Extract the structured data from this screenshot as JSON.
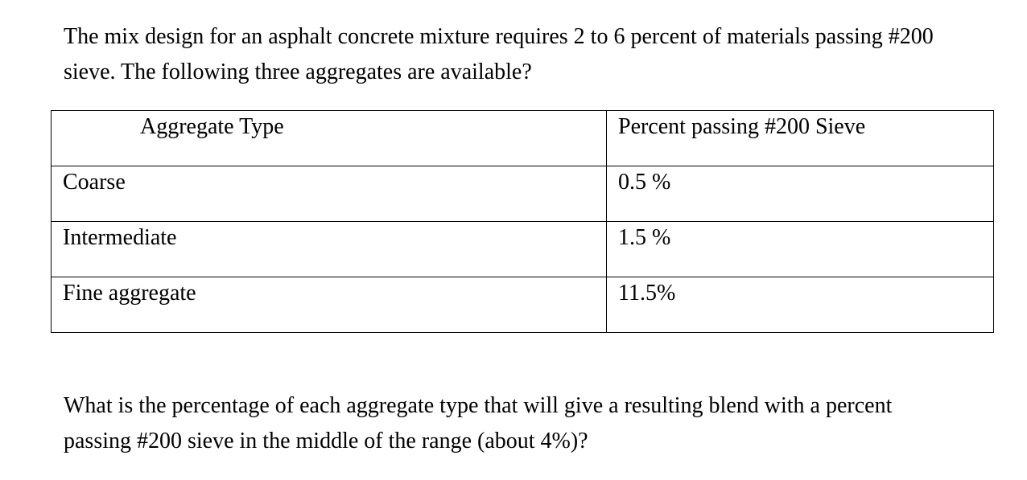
{
  "intro": "The mix design for an asphalt concrete mixture requires 2 to 6 percent of materials passing #200 sieve. The following three aggregates are available?",
  "table": {
    "headers": [
      "Aggregate Type",
      "Percent passing #200 Sieve"
    ],
    "rows": [
      [
        "Coarse",
        "0.5 %"
      ],
      [
        "Intermediate",
        "1.5 %"
      ],
      [
        "Fine aggregate",
        "11.5%"
      ]
    ]
  },
  "question": "What is the percentage of each aggregate type that will give a resulting blend with a percent passing #200 sieve in the middle of the range (about 4%)?"
}
